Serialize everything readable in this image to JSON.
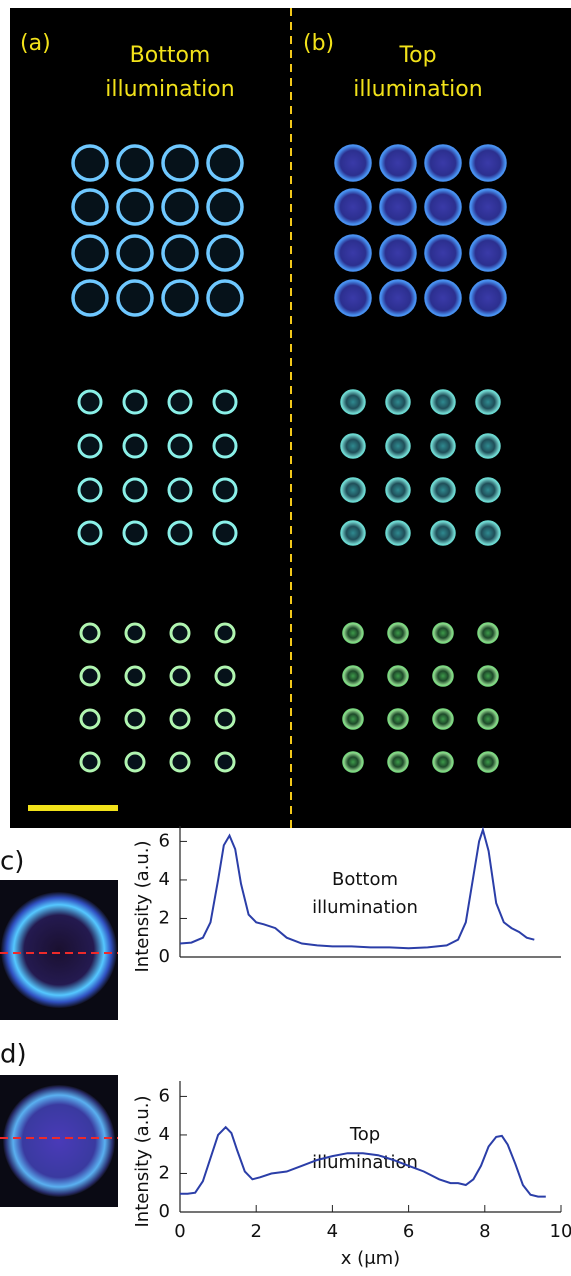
{
  "panels": [
    {
      "label": "(a)",
      "title": [
        "Bottom",
        "illumination"
      ]
    },
    {
      "label": "(b)",
      "title": [
        "Top",
        "illumination"
      ]
    }
  ],
  "chart_data": [
    {
      "type": "line",
      "label": "c)",
      "annotation": [
        "Bottom",
        "illumination"
      ],
      "ylabel": "Intensity (a.u.)",
      "color": "#2b3ea8",
      "xlim": [
        0,
        10
      ],
      "ylim": [
        0,
        6.8
      ],
      "yticks": [
        0,
        2,
        4,
        6
      ],
      "x": [
        0,
        0.3,
        0.6,
        0.8,
        1.0,
        1.15,
        1.3,
        1.45,
        1.6,
        1.8,
        2.0,
        2.2,
        2.5,
        2.8,
        3.2,
        3.6,
        4.0,
        4.5,
        5.0,
        5.5,
        6.0,
        6.5,
        7.0,
        7.3,
        7.5,
        7.7,
        7.85,
        7.95,
        8.1,
        8.3,
        8.5,
        8.7,
        8.9,
        9.1,
        9.3
      ],
      "values": [
        0.7,
        0.75,
        1.0,
        1.8,
        4.0,
        5.8,
        6.3,
        5.6,
        3.8,
        2.2,
        1.8,
        1.7,
        1.5,
        1.0,
        0.7,
        0.6,
        0.55,
        0.55,
        0.5,
        0.5,
        0.45,
        0.5,
        0.6,
        0.9,
        1.8,
        4.2,
        6.0,
        6.6,
        5.5,
        2.8,
        1.8,
        1.5,
        1.3,
        1.0,
        0.9
      ]
    },
    {
      "type": "line",
      "label": "d)",
      "annotation": [
        "Top",
        "illumination"
      ],
      "ylabel": "Intensity (a.u.)",
      "xlabel": "x (μm)",
      "color": "#2b3ea8",
      "xlim": [
        0,
        10
      ],
      "ylim": [
        0,
        6.8
      ],
      "yticks": [
        0,
        2,
        4,
        6
      ],
      "xticks": [
        0,
        2,
        4,
        6,
        8,
        10
      ],
      "x": [
        0,
        0.2,
        0.4,
        0.6,
        0.8,
        1.0,
        1.2,
        1.35,
        1.5,
        1.7,
        1.9,
        2.1,
        2.4,
        2.8,
        3.2,
        3.6,
        4.0,
        4.4,
        4.8,
        5.2,
        5.6,
        6.0,
        6.4,
        6.8,
        7.1,
        7.3,
        7.5,
        7.7,
        7.9,
        8.1,
        8.3,
        8.45,
        8.6,
        8.8,
        9.0,
        9.2,
        9.4,
        9.6
      ],
      "values": [
        0.95,
        0.95,
        1.0,
        1.6,
        2.8,
        4.0,
        4.4,
        4.1,
        3.2,
        2.1,
        1.7,
        1.8,
        2.0,
        2.1,
        2.4,
        2.7,
        2.9,
        3.05,
        3.05,
        2.95,
        2.7,
        2.4,
        2.1,
        1.7,
        1.5,
        1.5,
        1.4,
        1.7,
        2.4,
        3.4,
        3.9,
        3.95,
        3.5,
        2.5,
        1.4,
        0.9,
        0.8,
        0.8
      ]
    }
  ]
}
